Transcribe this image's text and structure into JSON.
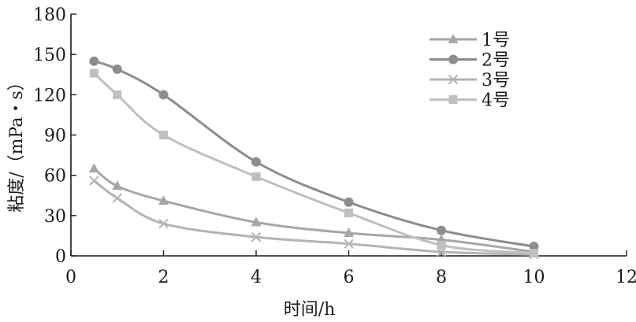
{
  "chart_data": {
    "type": "line",
    "xlabel": "时间/h",
    "ylabel": "粘度/（mPa・s）",
    "xlim": [
      0,
      12
    ],
    "ylim": [
      0,
      180
    ],
    "xticks": [
      0,
      2,
      4,
      6,
      8,
      10,
      12
    ],
    "yticks": [
      0,
      30,
      60,
      90,
      120,
      150,
      180
    ],
    "grid": false,
    "legend_position": "top-right",
    "series": [
      {
        "name": "1号",
        "marker": "triangle",
        "color": "#a6a6a6",
        "points": [
          [
            0.5,
            65
          ],
          [
            1,
            52
          ],
          [
            2,
            41
          ],
          [
            4,
            25
          ],
          [
            6,
            17
          ],
          [
            8,
            12
          ],
          [
            10,
            3
          ]
        ]
      },
      {
        "name": "2号",
        "marker": "circle",
        "color": "#8c8c8c",
        "points": [
          [
            0.5,
            145
          ],
          [
            1,
            139
          ],
          [
            2,
            120
          ],
          [
            4,
            70
          ],
          [
            6,
            40
          ],
          [
            8,
            19
          ],
          [
            10,
            7
          ]
        ]
      },
      {
        "name": "3号",
        "marker": "cross",
        "color": "#b3b3b3",
        "points": [
          [
            0.5,
            56
          ],
          [
            1,
            43
          ],
          [
            2,
            24
          ],
          [
            4,
            14
          ],
          [
            6,
            9
          ],
          [
            8,
            3
          ],
          [
            10,
            1
          ]
        ]
      },
      {
        "name": "4号",
        "marker": "square",
        "color": "#bfbfbf",
        "points": [
          [
            0.5,
            136
          ],
          [
            1,
            120
          ],
          [
            2,
            90
          ],
          [
            4,
            59
          ],
          [
            6,
            32
          ],
          [
            8,
            8
          ],
          [
            10,
            2
          ]
        ]
      }
    ]
  }
}
